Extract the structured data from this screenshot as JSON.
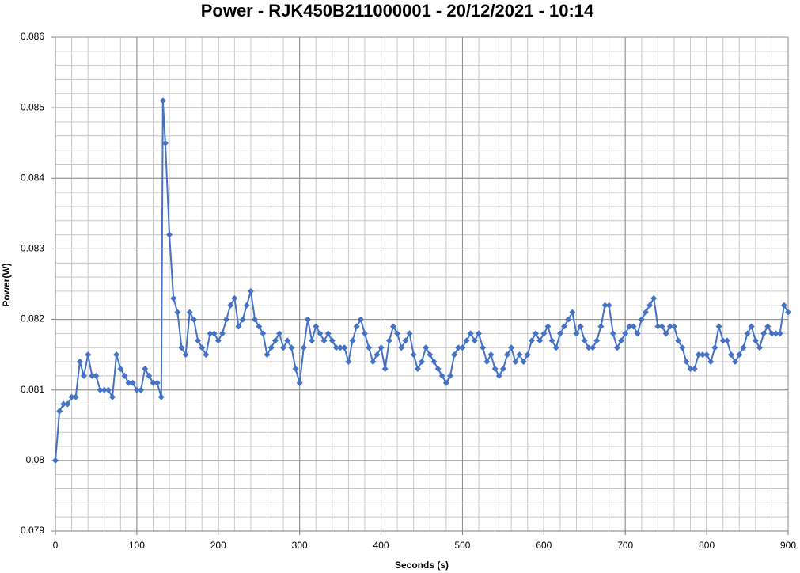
{
  "chart_data": {
    "type": "line",
    "title": "Power - RJK450B211000001 - 20/12/2021 - 10:14",
    "x_label": "Seconds (s)",
    "y_label": "Power(W)",
    "xlim": [
      0,
      900
    ],
    "ylim": [
      0.079,
      0.086
    ],
    "xticks": [
      0,
      100,
      200,
      300,
      400,
      500,
      600,
      700,
      800,
      900
    ],
    "yticks": [
      0.079,
      0.08,
      0.081,
      0.082,
      0.083,
      0.084,
      0.085,
      0.086
    ],
    "minor_xticks": [
      0,
      20,
      40,
      60,
      80,
      100,
      120,
      140,
      160,
      180,
      200,
      220,
      240,
      260,
      280,
      300,
      320,
      340,
      360,
      380,
      400,
      420,
      440,
      460,
      480,
      500,
      520,
      540,
      560,
      580,
      600,
      620,
      640,
      660,
      680,
      700,
      720,
      740,
      760,
      780,
      800,
      820,
      840,
      860,
      880,
      900
    ],
    "minor_yticks": [
      0.079,
      0.0792,
      0.0794,
      0.0796,
      0.0798,
      0.08,
      0.0802,
      0.0804,
      0.0806,
      0.0808,
      0.081,
      0.0812,
      0.0814,
      0.0816,
      0.0818,
      0.082,
      0.0822,
      0.0824,
      0.0826,
      0.0828,
      0.083,
      0.0832,
      0.0834,
      0.0836,
      0.0838,
      0.084,
      0.0842,
      0.0844,
      0.0846,
      0.0848,
      0.085,
      0.0852,
      0.0854,
      0.0856,
      0.0858,
      0.086
    ],
    "grid": true,
    "marker": "diamond",
    "x": [
      0,
      5,
      10,
      15,
      20,
      25,
      30,
      35,
      40,
      45,
      50,
      55,
      60,
      65,
      70,
      75,
      80,
      85,
      90,
      95,
      100,
      105,
      110,
      115,
      120,
      125,
      130,
      132,
      135,
      140,
      145,
      150,
      155,
      160,
      165,
      170,
      175,
      180,
      185,
      190,
      195,
      200,
      205,
      210,
      215,
      220,
      225,
      230,
      235,
      240,
      245,
      250,
      255,
      260,
      265,
      270,
      275,
      280,
      285,
      290,
      295,
      300,
      305,
      310,
      315,
      320,
      325,
      330,
      335,
      340,
      345,
      350,
      355,
      360,
      365,
      370,
      375,
      380,
      385,
      390,
      395,
      400,
      405,
      410,
      415,
      420,
      425,
      430,
      435,
      440,
      445,
      450,
      455,
      460,
      465,
      470,
      475,
      480,
      485,
      490,
      495,
      500,
      505,
      510,
      515,
      520,
      525,
      530,
      535,
      540,
      545,
      550,
      555,
      560,
      565,
      570,
      575,
      580,
      585,
      590,
      595,
      600,
      605,
      610,
      615,
      620,
      625,
      630,
      635,
      640,
      645,
      650,
      655,
      660,
      665,
      670,
      675,
      680,
      685,
      690,
      695,
      700,
      705,
      710,
      715,
      720,
      725,
      730,
      735,
      740,
      745,
      750,
      755,
      760,
      765,
      770,
      775,
      780,
      785,
      790,
      795,
      800,
      805,
      810,
      815,
      820,
      825,
      830,
      835,
      840,
      845,
      850,
      855,
      860,
      865,
      870,
      875,
      880,
      885,
      890,
      895,
      900
    ],
    "series": [
      {
        "name": "Power",
        "color": "#4472c4",
        "values": [
          0.08,
          0.0807,
          0.0808,
          0.0808,
          0.0809,
          0.0809,
          0.0814,
          0.0812,
          0.0815,
          0.0812,
          0.0812,
          0.081,
          0.081,
          0.081,
          0.0809,
          0.0815,
          0.0813,
          0.0812,
          0.0811,
          0.0811,
          0.081,
          0.081,
          0.0813,
          0.0812,
          0.0811,
          0.0811,
          0.0809,
          0.0851,
          0.0845,
          0.0832,
          0.0823,
          0.0821,
          0.0816,
          0.0815,
          0.0821,
          0.082,
          0.0817,
          0.0816,
          0.0815,
          0.0818,
          0.0818,
          0.0817,
          0.0818,
          0.082,
          0.0822,
          0.0823,
          0.0819,
          0.082,
          0.0822,
          0.0824,
          0.082,
          0.0819,
          0.0818,
          0.0815,
          0.0816,
          0.0817,
          0.0818,
          0.0816,
          0.0817,
          0.0816,
          0.0813,
          0.0811,
          0.0816,
          0.082,
          0.0817,
          0.0819,
          0.0818,
          0.0817,
          0.0818,
          0.0817,
          0.0816,
          0.0816,
          0.0816,
          0.0814,
          0.0817,
          0.0819,
          0.082,
          0.0818,
          0.0816,
          0.0814,
          0.0815,
          0.0816,
          0.0813,
          0.0817,
          0.0819,
          0.0818,
          0.0816,
          0.0817,
          0.0818,
          0.0815,
          0.0813,
          0.0814,
          0.0816,
          0.0815,
          0.0814,
          0.0813,
          0.0812,
          0.0811,
          0.0812,
          0.0815,
          0.0816,
          0.0816,
          0.0817,
          0.0818,
          0.0817,
          0.0818,
          0.0816,
          0.0814,
          0.0815,
          0.0813,
          0.0812,
          0.0813,
          0.0815,
          0.0816,
          0.0814,
          0.0815,
          0.0814,
          0.0815,
          0.0817,
          0.0818,
          0.0817,
          0.0818,
          0.0819,
          0.0817,
          0.0816,
          0.0818,
          0.0819,
          0.082,
          0.0821,
          0.0818,
          0.0819,
          0.0817,
          0.0816,
          0.0816,
          0.0817,
          0.0819,
          0.0822,
          0.0822,
          0.0818,
          0.0816,
          0.0817,
          0.0818,
          0.0819,
          0.0819,
          0.0818,
          0.082,
          0.0821,
          0.0822,
          0.0823,
          0.0819,
          0.0819,
          0.0818,
          0.0819,
          0.0819,
          0.0817,
          0.0816,
          0.0814,
          0.0813,
          0.0813,
          0.0815,
          0.0815,
          0.0815,
          0.0814,
          0.0816,
          0.0819,
          0.0817,
          0.0817,
          0.0815,
          0.0814,
          0.0815,
          0.0816,
          0.0818,
          0.0819,
          0.0817,
          0.0816,
          0.0818,
          0.0819,
          0.0818,
          0.0818,
          0.0818,
          0.0822,
          0.0821
        ]
      }
    ]
  }
}
